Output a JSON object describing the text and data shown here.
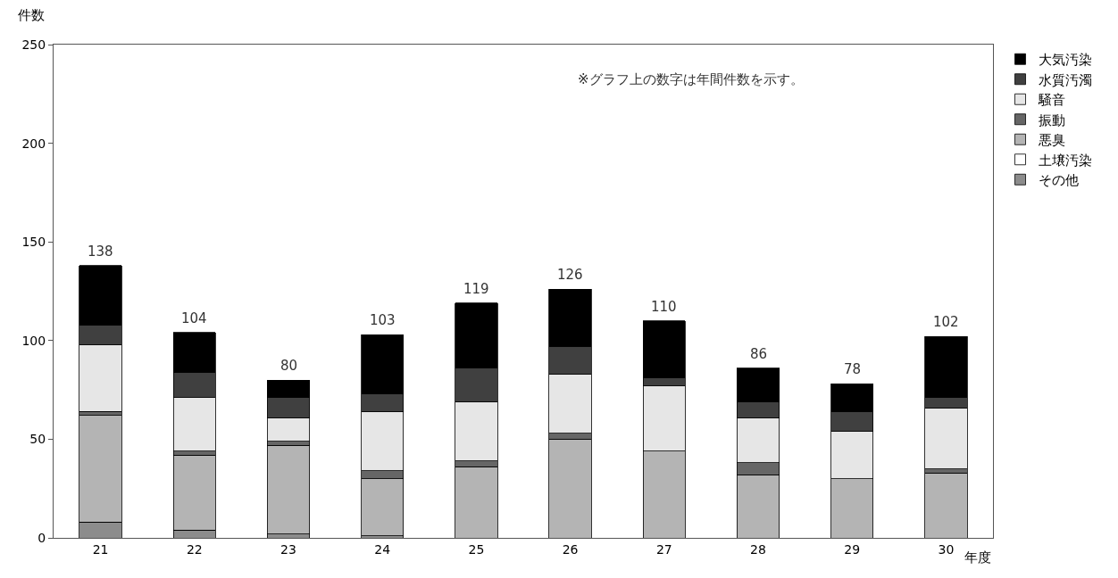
{
  "chart_data": {
    "type": "bar",
    "stacked": true,
    "categories": [
      "21",
      "22",
      "23",
      "24",
      "25",
      "26",
      "27",
      "28",
      "29",
      "30"
    ],
    "series": [
      {
        "name": "その他",
        "color": "#8c8c8c",
        "values": [
          8,
          4,
          2,
          1,
          0,
          0,
          0,
          0,
          0,
          0
        ]
      },
      {
        "name": "土壌汚染",
        "color": "#ffffff",
        "values": [
          0,
          0,
          0,
          0,
          0,
          0,
          0,
          0,
          0,
          0
        ]
      },
      {
        "name": "悪臭",
        "color": "#b4b4b4",
        "values": [
          54,
          38,
          45,
          29,
          36,
          50,
          44,
          32,
          30,
          33
        ]
      },
      {
        "name": "振動",
        "color": "#666666",
        "values": [
          2,
          2,
          2,
          4,
          3,
          3,
          0,
          6,
          0,
          2
        ]
      },
      {
        "name": "騒音",
        "color": "#e6e6e6",
        "values": [
          34,
          27,
          12,
          30,
          30,
          30,
          33,
          23,
          24,
          31
        ]
      },
      {
        "name": "水質汚濁",
        "color": "#404040",
        "values": [
          10,
          13,
          10,
          9,
          17,
          14,
          4,
          8,
          10,
          5
        ]
      },
      {
        "name": "大気汚染",
        "color": "#000000",
        "values": [
          30,
          20,
          9,
          30,
          33,
          29,
          29,
          17,
          14,
          31
        ]
      }
    ],
    "totals": [
      "138",
      "104",
      "80",
      "103",
      "119",
      "126",
      "110",
      "86",
      "78",
      "102"
    ],
    "ylim": [
      0,
      250
    ],
    "yticks": [
      0,
      50,
      100,
      150,
      200,
      250
    ],
    "xlabel": "年度",
    "ylabel": "件数",
    "annotations": [
      "※グラフ上の数字は年間件数を示す。"
    ],
    "grid": false,
    "legend": "right"
  }
}
